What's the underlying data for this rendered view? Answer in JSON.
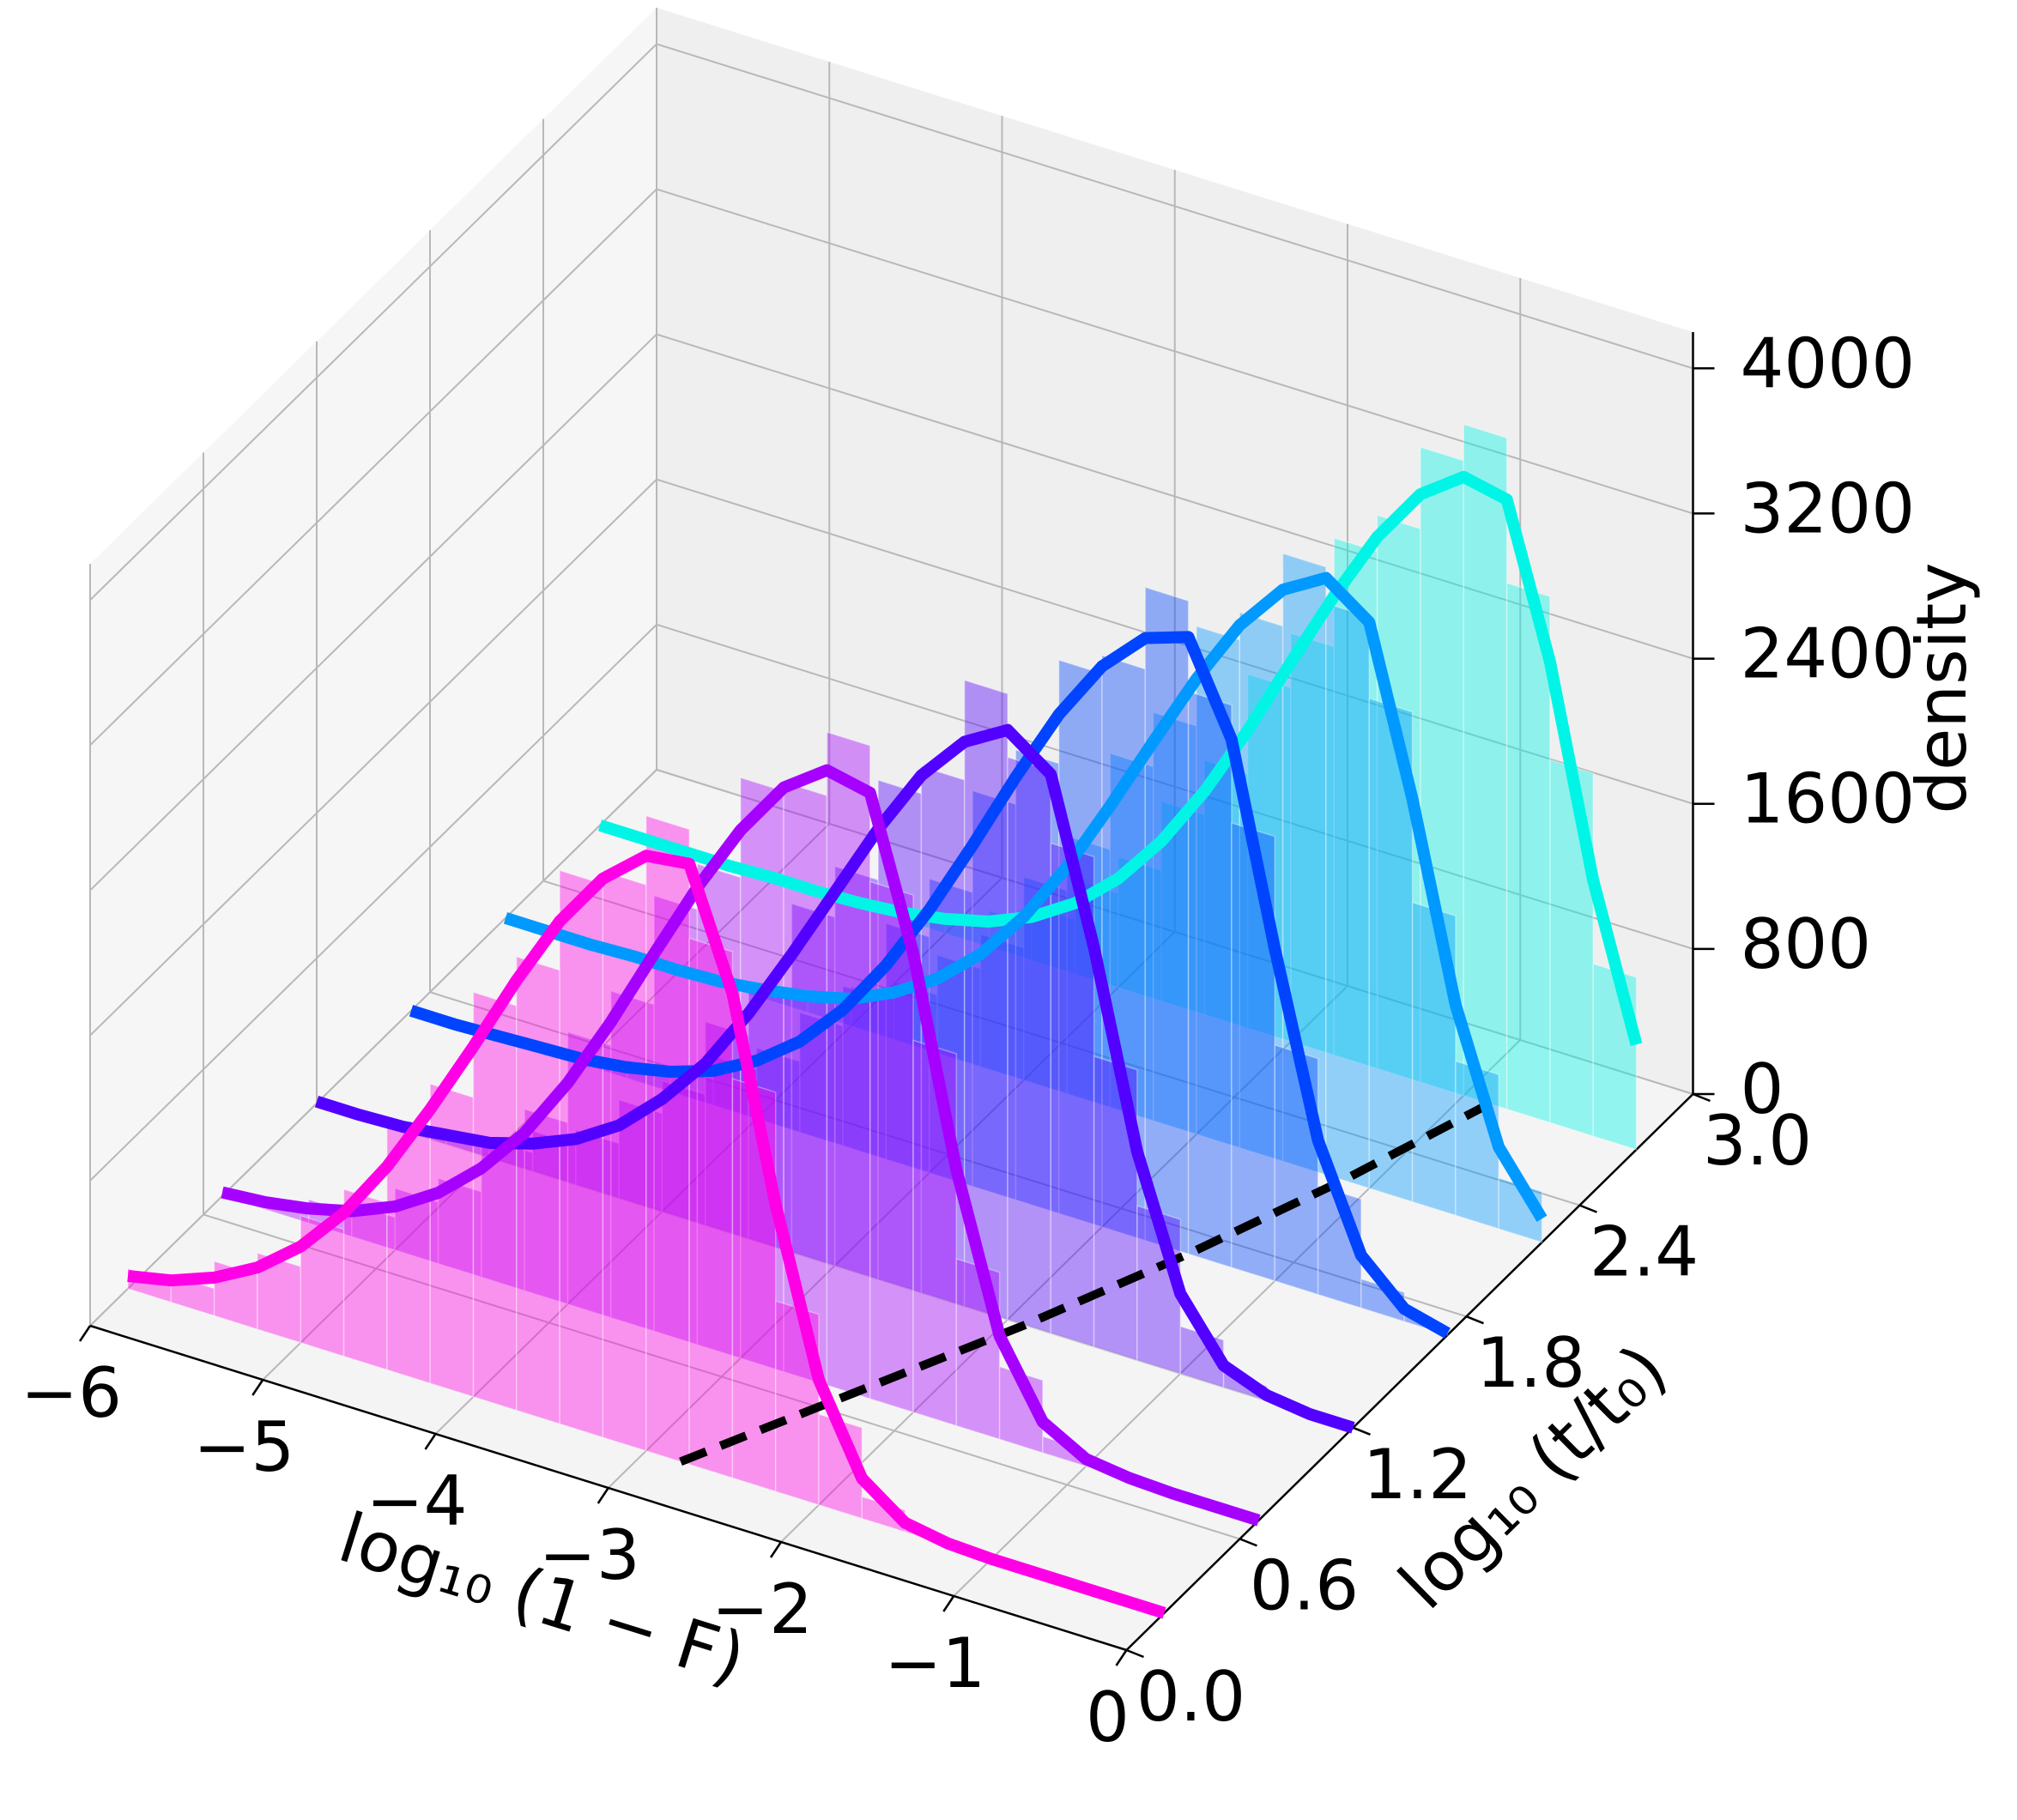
{
  "chart_data": {
    "type": "histogram3d",
    "xlabel": "log₁₀ (1 − F)",
    "ylabel": "log₁₀ (t/t₀)",
    "zlabel": "density",
    "xlim": [
      -6,
      0
    ],
    "ylim": [
      0,
      3
    ],
    "zlim": [
      0,
      4200
    ],
    "xticks": [
      {
        "value": -6,
        "label": "−6"
      },
      {
        "value": -5,
        "label": "−5"
      },
      {
        "value": -4,
        "label": "−4"
      },
      {
        "value": -3,
        "label": "−3"
      },
      {
        "value": -2,
        "label": "−2"
      },
      {
        "value": -1,
        "label": "−1"
      },
      0
    ],
    "yticks": [
      {
        "value": 0,
        "label": "0.0"
      },
      0.6,
      1.2,
      1.8,
      2.4,
      {
        "value": 3,
        "label": "3.0"
      }
    ],
    "zticks": [
      0,
      800,
      1600,
      2400,
      3200,
      4000
    ],
    "grid": true,
    "x": [
      -6,
      -5.75,
      -5.5,
      -5.25,
      -5,
      -4.75,
      -4.5,
      -4.25,
      -4,
      -3.75,
      -3.5,
      -3.25,
      -3,
      -2.75,
      -2.5,
      -2.25,
      -2,
      -1.75,
      -1.5,
      -1.25,
      -1,
      -0.75,
      -0.5,
      -0.25,
      0
    ],
    "bins": [
      -6,
      -5.75,
      -5.5,
      -5.25,
      -5,
      -4.75,
      -4.5,
      -4.25,
      -4,
      -3.75,
      -3.5,
      -3.25,
      -3,
      -2.75,
      -2.5,
      -2.25,
      -2,
      -1.75,
      -1.5,
      -1.25,
      -1,
      -0.75,
      -0.5,
      -0.25,
      0
    ],
    "series": [
      {
        "y": 0.2,
        "color": "#ff00e6",
        "values": [
          70,
          120,
          210,
          340,
          530,
          790,
          1120,
          1510,
          1930,
          2370,
          2770,
          3080,
          3280,
          3310,
          2670,
          1580,
          690,
          220,
          50,
          10,
          0,
          0,
          0,
          0,
          0
        ],
        "hist_values": [
          110,
          150,
          300,
          420,
          700,
          920,
          1380,
          1650,
          2230,
          2500,
          3050,
          3120,
          3500,
          2900,
          2200,
          1050,
          500,
          120,
          40,
          0,
          0,
          0,
          0,
          0
        ]
      },
      {
        "y": 0.7,
        "color": "#a600ff",
        "values": [
          20,
          40,
          80,
          140,
          240,
          390,
          600,
          870,
          1220,
          1630,
          2080,
          2520,
          2910,
          3220,
          3390,
          3340,
          2530,
          1410,
          570,
          170,
          40,
          10,
          0,
          0,
          0
        ],
        "hist_values": [
          40,
          50,
          130,
          180,
          340,
          470,
          780,
          1000,
          1500,
          1800,
          2400,
          2650,
          3200,
          3250,
          3600,
          2850,
          2050,
          920,
          400,
          90,
          30,
          0,
          0,
          0
        ]
      },
      {
        "y": 1.2,
        "color": "#5200ff",
        "values": [
          10,
          10,
          20,
          50,
          80,
          150,
          250,
          400,
          620,
          890,
          1240,
          1640,
          2060,
          2480,
          2850,
          3110,
          3250,
          3080,
          2200,
          1150,
          440,
          120,
          30,
          0,
          0
        ],
        "hist_values": [
          0,
          20,
          30,
          80,
          100,
          220,
          300,
          540,
          720,
          1120,
          1400,
          1920,
          2200,
          2750,
          2900,
          3450,
          3100,
          2700,
          1600,
          850,
          260,
          80,
          20,
          0
        ]
      },
      {
        "y": 1.7,
        "color": "#0044ff",
        "values": [
          0,
          0,
          10,
          20,
          30,
          60,
          110,
          190,
          320,
          500,
          750,
          1070,
          1450,
          1880,
          2330,
          2750,
          3090,
          3320,
          3400,
          2910,
          1830,
          850,
          290,
          70,
          10
        ],
        "hist_values": [
          0,
          10,
          10,
          30,
          40,
          100,
          140,
          270,
          390,
          660,
          880,
          1300,
          1620,
          2180,
          2480,
          3050,
          3150,
          3600,
          3100,
          2450,
          1300,
          600,
          160,
          50
        ]
      },
      {
        "y": 2.2,
        "color": "#0099ff",
        "values": [
          0,
          0,
          0,
          10,
          10,
          20,
          50,
          90,
          150,
          260,
          410,
          620,
          900,
          1250,
          1660,
          2090,
          2510,
          2880,
          3150,
          3290,
          3120,
          2220,
          1160,
          450,
          130
        ],
        "hist_values": [
          0,
          0,
          10,
          10,
          20,
          30,
          80,
          110,
          220,
          320,
          540,
          730,
          1120,
          1420,
          1950,
          2250,
          2800,
          2950,
          3350,
          3150,
          2700,
          1650,
          850,
          280
        ]
      },
      {
        "y": 2.7,
        "color": "#00f5e6",
        "values": [
          0,
          0,
          0,
          0,
          10,
          10,
          20,
          40,
          80,
          140,
          240,
          390,
          600,
          880,
          1230,
          1640,
          2090,
          2530,
          2930,
          3240,
          3410,
          3360,
          2540,
          1410,
          580
        ],
        "hist_values": [
          0,
          0,
          0,
          10,
          10,
          20,
          30,
          70,
          100,
          200,
          300,
          520,
          720,
          1100,
          1400,
          1950,
          2250,
          2850,
          3050,
          3500,
          3700,
          2900,
          2000,
          950
        ]
      }
    ],
    "peak_line": {
      "color": "#000000",
      "x": [
        -2.8,
        -2.35,
        -1.9,
        -1.5,
        -1.15,
        -0.85
      ],
      "y": [
        0.2,
        0.7,
        1.2,
        1.7,
        2.2,
        2.7
      ]
    }
  }
}
